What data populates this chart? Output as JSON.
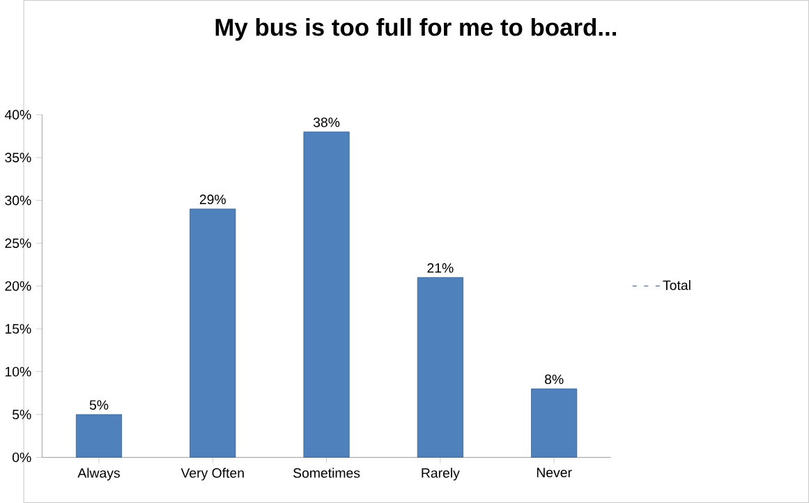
{
  "chart_data": {
    "type": "bar",
    "title": "My bus is too full for me to board...",
    "categories": [
      "Always",
      "Very Often",
      "Sometimes",
      "Rarely",
      "Never"
    ],
    "series": [
      {
        "name": "Total",
        "color": "#4f81bd",
        "values": [
          5,
          29,
          38,
          21,
          8
        ],
        "value_labels": [
          "5%",
          "29%",
          "38%",
          "21%",
          "8%"
        ]
      }
    ],
    "ylim": [
      0,
      40
    ],
    "yticks": [
      {
        "value": 0,
        "label": "0%"
      },
      {
        "value": 5,
        "label": "5%"
      },
      {
        "value": 10,
        "label": "10%"
      },
      {
        "value": 15,
        "label": "15%"
      },
      {
        "value": 20,
        "label": "20%"
      },
      {
        "value": 25,
        "label": "25%"
      },
      {
        "value": 30,
        "label": "30%"
      },
      {
        "value": 35,
        "label": "35%"
      },
      {
        "value": 40,
        "label": "40%"
      }
    ],
    "legend": "right"
  }
}
